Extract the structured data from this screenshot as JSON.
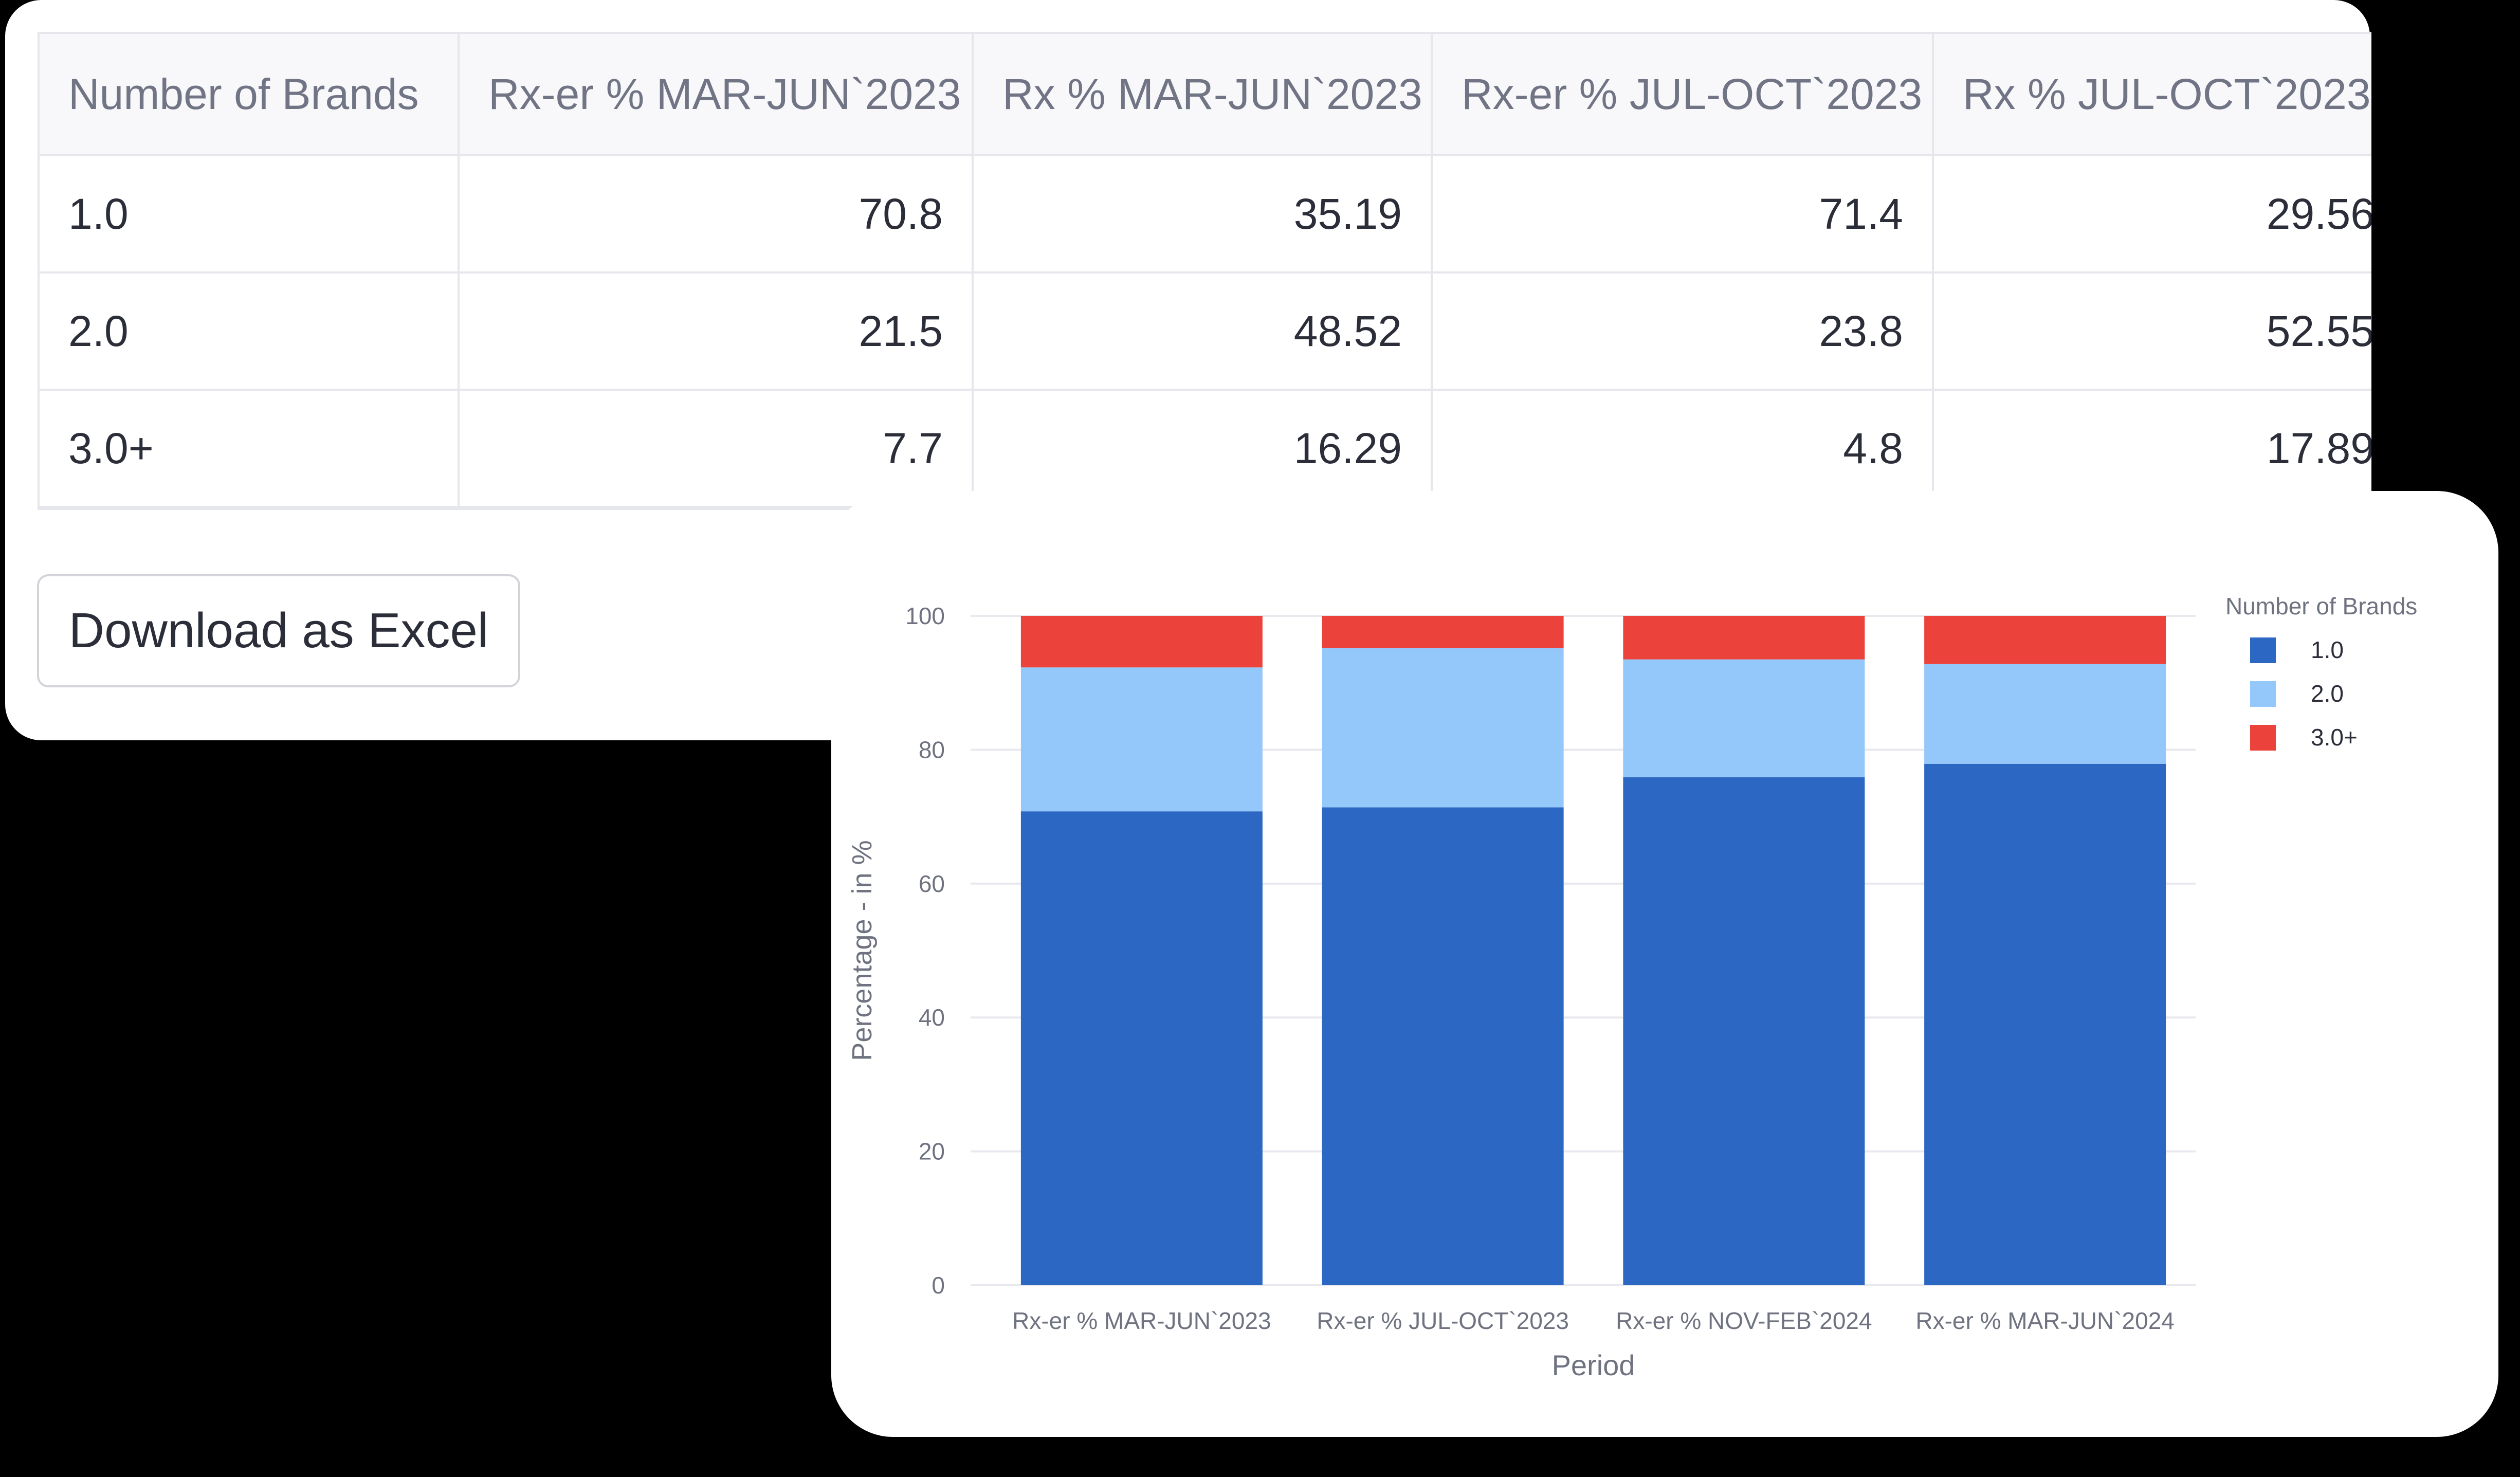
{
  "table": {
    "headers": [
      "Number of Brands",
      "Rx-er % MAR-JUN`2023",
      "Rx % MAR-JUN`2023",
      "Rx-er % JUL-OCT`2023",
      "Rx % JUL-OCT`2023"
    ],
    "rows": [
      [
        "1.0",
        "70.8",
        "35.19",
        "71.4",
        "29.56"
      ],
      [
        "2.0",
        "21.5",
        "48.52",
        "23.8",
        "52.55"
      ],
      [
        "3.0+",
        "7.7",
        "16.29",
        "4.8",
        "17.89"
      ]
    ]
  },
  "download_button": {
    "label": "Download as Excel"
  },
  "chart_data": {
    "type": "bar",
    "stacked": true,
    "categories": [
      "Rx-er % MAR-JUN`2023",
      "Rx-er % JUL-OCT`2023",
      "Rx-er % NOV-FEB`2024",
      "Rx-er % MAR-JUN`2024"
    ],
    "series": [
      {
        "name": "1.0",
        "color": "#2c67c3",
        "values": [
          70.8,
          71.4,
          75.9,
          77.9
        ]
      },
      {
        "name": "2.0",
        "color": "#94c8fa",
        "values": [
          21.5,
          23.8,
          17.6,
          14.9
        ]
      },
      {
        "name": "3.0+",
        "color": "#eb433b",
        "values": [
          7.7,
          4.8,
          6.5,
          7.2
        ]
      }
    ],
    "xlabel": "Period",
    "ylabel": "Percentage - in %",
    "ylim": [
      0,
      100
    ],
    "yticks": [
      0,
      20,
      40,
      60,
      80,
      100
    ],
    "grid": true,
    "legend": {
      "title": "Number of Brands",
      "position": "right"
    }
  }
}
